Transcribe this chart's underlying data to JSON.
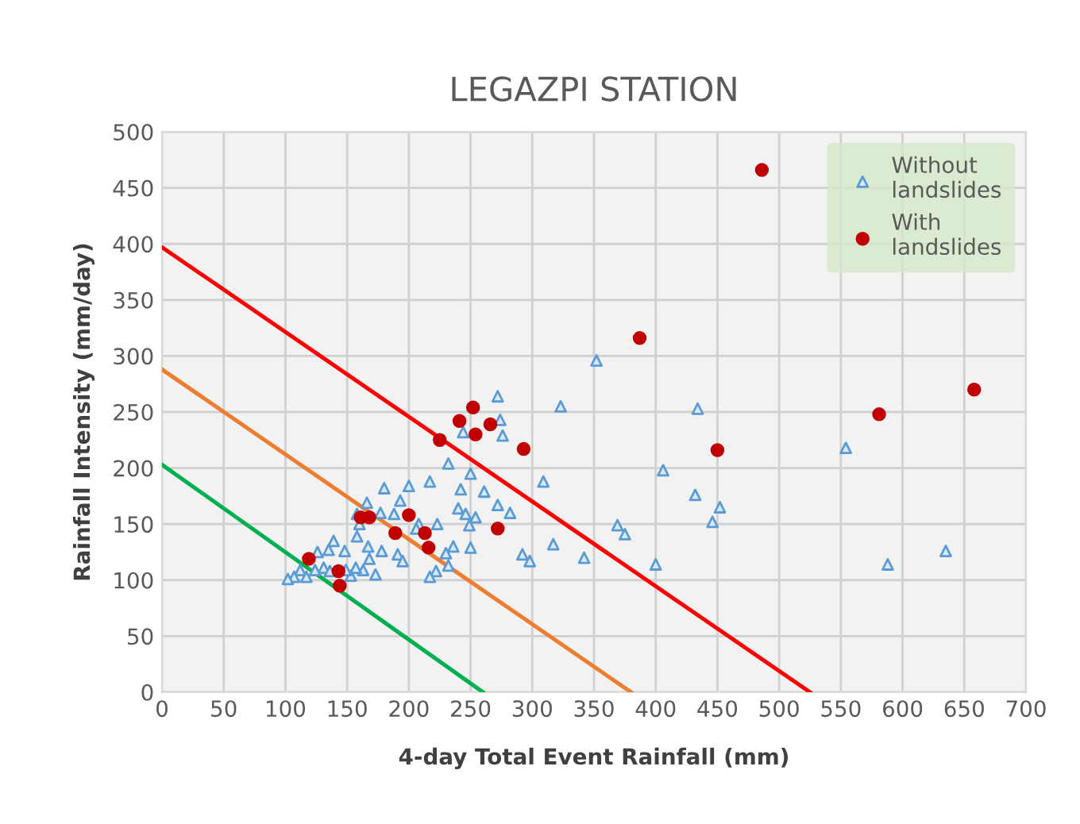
{
  "chart_data": {
    "type": "scatter",
    "title": "LEGAZPI STATION",
    "xlabel": "4-day Total Event Rainfall (mm)",
    "ylabel": "Rainfall Intensity (mm/day)",
    "xlim": [
      0,
      700
    ],
    "ylim": [
      0,
      500
    ],
    "xticks": [
      0,
      50,
      100,
      150,
      200,
      250,
      300,
      350,
      400,
      450,
      500,
      550,
      600,
      650,
      700
    ],
    "yticks": [
      0,
      50,
      100,
      150,
      200,
      250,
      300,
      350,
      400,
      450,
      500
    ],
    "grid": true,
    "legend": "top right",
    "series": [
      {
        "name": "Without landslides",
        "marker": "triangle",
        "color": "#5b9bd5",
        "x": [
          352,
          323,
          434,
          554,
          309,
          406,
          432,
          452,
          446,
          369,
          375,
          317,
          342,
          400,
          588,
          635,
          272,
          274,
          276,
          244,
          232,
          250,
          180,
          200,
          217,
          242,
          261,
          193,
          166,
          272,
          282,
          240,
          246,
          254,
          177,
          188,
          158,
          160,
          208,
          206,
          223,
          249,
          158,
          167,
          178,
          191,
          195,
          139,
          148,
          135,
          126,
          168,
          236,
          250,
          230,
          292,
          298,
          232,
          222,
          217,
          173,
          163,
          157,
          153,
          131,
          136,
          124,
          112,
          107,
          102,
          117,
          149
        ],
        "values": [
          296,
          255,
          253,
          218,
          188,
          198,
          176,
          165,
          152,
          149,
          141,
          132,
          120,
          114,
          114,
          126,
          264,
          243,
          229,
          232,
          204,
          195,
          182,
          184,
          188,
          181,
          179,
          171,
          169,
          167,
          160,
          164,
          159,
          156,
          160,
          159,
          159,
          150,
          150,
          146,
          150,
          149,
          139,
          130,
          126,
          123,
          117,
          135,
          126,
          127,
          125,
          119,
          130,
          129,
          124,
          123,
          117,
          113,
          108,
          103,
          105,
          109,
          111,
          104,
          111,
          108,
          109,
          109,
          103,
          101,
          103,
          109
        ]
      },
      {
        "name": "With landslides",
        "marker": "circle",
        "color": "#c00000",
        "x": [
          486,
          387,
          658,
          581,
          450,
          252,
          241,
          266,
          254,
          225,
          293,
          200,
          161,
          168,
          213,
          189,
          272,
          216,
          119,
          143,
          144
        ],
        "values": [
          466,
          316,
          270,
          248,
          216,
          254,
          242,
          239,
          230,
          225,
          217,
          158,
          156,
          156,
          142,
          142,
          146,
          129,
          119,
          108,
          95
        ]
      },
      {
        "type": "line",
        "color": "#00b050",
        "x": [
          0,
          260
        ],
        "values": [
          203,
          0
        ]
      },
      {
        "type": "line",
        "color": "#ed7d31",
        "x": [
          0,
          380
        ],
        "values": [
          288,
          0
        ]
      },
      {
        "type": "line",
        "color": "#ff0000",
        "x": [
          0,
          525
        ],
        "values": [
          397,
          0
        ]
      }
    ]
  }
}
